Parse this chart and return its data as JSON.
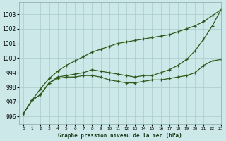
{
  "title": "Graphe pression niveau de la mer (hPa)",
  "bg_color": "#cce8e8",
  "grid_color": "#aacccc",
  "line_color": "#2d5a1b",
  "xlim": [
    -0.5,
    23
  ],
  "ylim": [
    995.5,
    1003.8
  ],
  "yticks": [
    996,
    997,
    998,
    999,
    1000,
    1001,
    1002,
    1003
  ],
  "xticks": [
    0,
    1,
    2,
    3,
    4,
    5,
    6,
    7,
    8,
    9,
    10,
    11,
    12,
    13,
    14,
    15,
    16,
    17,
    18,
    19,
    20,
    21,
    22,
    23
  ],
  "line_top": [
    996.2,
    997.1,
    997.9,
    998.6,
    999.1,
    999.5,
    999.8,
    1000.1,
    1000.4,
    1000.6,
    1000.8,
    1001.0,
    1001.1,
    1001.2,
    1001.3,
    1001.4,
    1001.5,
    1001.6,
    1001.8,
    1002.0,
    1002.2,
    1002.5,
    1002.9,
    1003.3
  ],
  "line_mid": [
    996.2,
    997.1,
    997.5,
    998.3,
    998.7,
    998.8,
    998.9,
    999.0,
    999.2,
    999.1,
    999.0,
    998.9,
    998.8,
    998.7,
    998.8,
    998.8,
    999.0,
    999.2,
    999.5,
    999.9,
    1000.5,
    1001.3,
    1002.2,
    1003.3
  ],
  "line_bot": [
    996.2,
    997.1,
    997.5,
    998.3,
    998.6,
    998.7,
    998.7,
    998.8,
    998.8,
    998.7,
    998.5,
    998.4,
    998.3,
    998.3,
    998.4,
    998.5,
    998.5,
    998.6,
    998.7,
    998.8,
    999.0,
    999.5,
    999.8,
    999.9
  ]
}
